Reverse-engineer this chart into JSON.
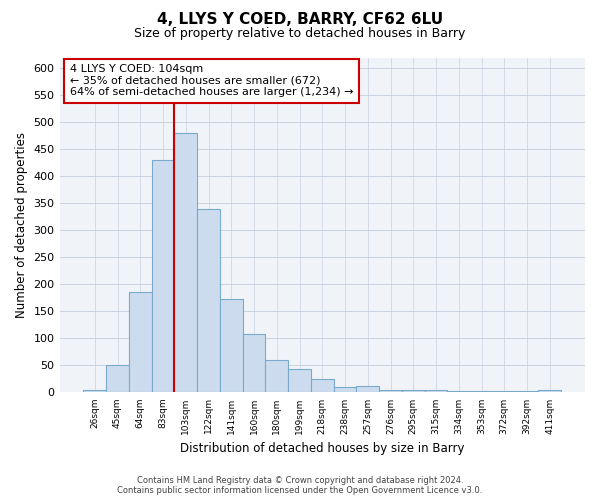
{
  "title_line1": "4, LLYS Y COED, BARRY, CF62 6LU",
  "title_line2": "Size of property relative to detached houses in Barry",
  "xlabel": "Distribution of detached houses by size in Barry",
  "ylabel": "Number of detached properties",
  "bar_labels": [
    "26sqm",
    "45sqm",
    "64sqm",
    "83sqm",
    "103sqm",
    "122sqm",
    "141sqm",
    "160sqm",
    "180sqm",
    "199sqm",
    "218sqm",
    "238sqm",
    "257sqm",
    "276sqm",
    "295sqm",
    "315sqm",
    "334sqm",
    "353sqm",
    "372sqm",
    "392sqm",
    "411sqm"
  ],
  "bar_values": [
    5,
    50,
    185,
    430,
    480,
    340,
    173,
    108,
    60,
    44,
    25,
    10,
    12,
    5,
    5,
    5,
    3,
    2,
    2,
    2,
    5
  ],
  "bar_color": "#ccdcee",
  "bar_edge_color": "#7aaacb",
  "vline_index": 4,
  "vline_color": "#cc0000",
  "annotation_title": "4 LLYS Y COED: 104sqm",
  "annotation_line1": "← 35% of detached houses are smaller (672)",
  "annotation_line2": "64% of semi-detached houses are larger (1,234) →",
  "annotation_box_color": "white",
  "annotation_box_edge": "#cc0000",
  "ylim": [
    0,
    620
  ],
  "yticks": [
    0,
    50,
    100,
    150,
    200,
    250,
    300,
    350,
    400,
    450,
    500,
    550,
    600
  ],
  "footnote1": "Contains HM Land Registry data © Crown copyright and database right 2024.",
  "footnote2": "Contains public sector information licensed under the Open Government Licence v3.0.",
  "bg_color": "#ffffff",
  "plot_bg_color": "#f0f4f8",
  "grid_color": "#c8d4e0"
}
